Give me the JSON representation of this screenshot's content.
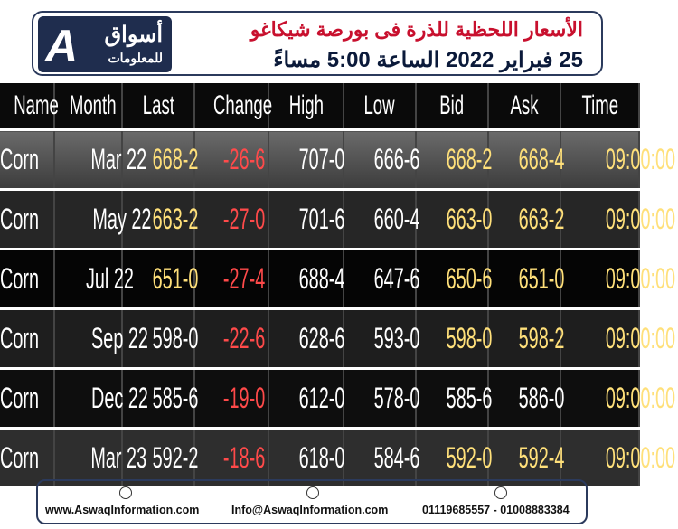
{
  "header": {
    "logo_name": "أسواق",
    "logo_subtitle": "للمعلومات",
    "title": "الأسعار اللحظية للذرة فى بورصة شيكاغو",
    "subtitle": "25 فبراير 2022 الساعة 5:00 مساءً"
  },
  "table": {
    "columns": [
      "Name",
      "Month",
      "Last",
      "Change",
      "High",
      "Low",
      "Bid",
      "Ask",
      "Time"
    ],
    "rows": [
      [
        "Corn",
        "Mar 22",
        "668-2",
        "-26-6",
        "707-0",
        "666-6",
        "668-2",
        "668-4",
        "09:00:00"
      ],
      [
        "Corn",
        "May 22",
        "663-2",
        "-27-0",
        "701-6",
        "660-4",
        "663-0",
        "663-2",
        "09:00:00"
      ],
      [
        "Corn",
        "Jul 22",
        "651-0",
        "-27-4",
        "688-4",
        "647-6",
        "650-6",
        "651-0",
        "09:00:00"
      ],
      [
        "Corn",
        "Sep 22",
        "598-0",
        "-22-6",
        "628-6",
        "593-0",
        "598-0",
        "598-2",
        "09:00:00"
      ],
      [
        "Corn",
        "Dec 22",
        "585-6",
        "-19-0",
        "612-0",
        "578-0",
        "585-6",
        "586-0",
        "09:00:00"
      ],
      [
        "Corn",
        "Mar 23",
        "592-2",
        "-18-6",
        "618-0",
        "584-6",
        "592-0",
        "592-4",
        "09:00:00"
      ]
    ]
  },
  "footer": {
    "website": "www.AswaqInformation.com",
    "email": "Info@AswaqInformation.com",
    "phone": "01119685557 - 01008883384"
  }
}
